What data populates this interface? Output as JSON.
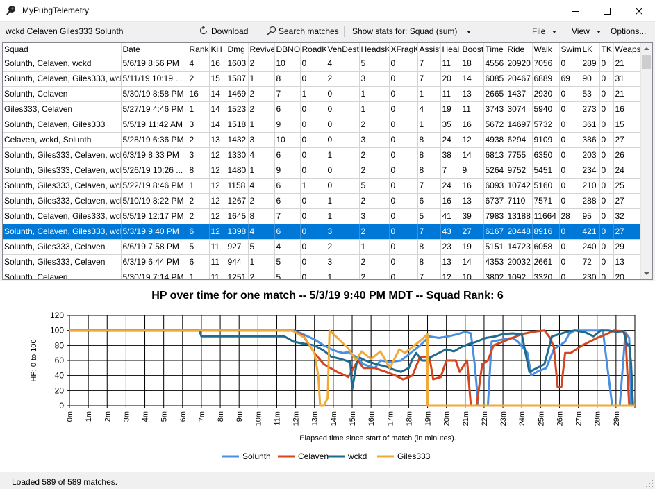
{
  "app": {
    "title": "MyPubgTelemetry"
  },
  "toolbar": {
    "players": "wckd Celaven Giles333 Solunth",
    "download": "Download",
    "search": "Search matches",
    "show_stats": "Show stats for: Squad (sum)",
    "file": "File",
    "view": "View",
    "options": "Options..."
  },
  "grid": {
    "columns": [
      "Squad",
      "Date",
      "Rank",
      "Kill",
      "Dmg",
      "Revive",
      "DBNO",
      "RoadK",
      "VehDest",
      "HeadsK",
      "XFragK",
      "Assist",
      "Heal",
      "Boost",
      "Time",
      "Ride",
      "Walk",
      "Swim",
      "LK",
      "TK",
      "Weaps"
    ],
    "selected_index": 11,
    "rows": [
      [
        "Solunth, Celaven, wckd",
        "5/6/19 8:56 PM",
        "4",
        "16",
        "1603",
        "2",
        "10",
        "0",
        "4",
        "5",
        "0",
        "7",
        "11",
        "18",
        "4556",
        "20920",
        "7056",
        "0",
        "289",
        "0",
        "21"
      ],
      [
        "Solunth, Celaven, Giles333, wckd",
        "5/11/19 10:19 ...",
        "2",
        "15",
        "1587",
        "1",
        "8",
        "0",
        "2",
        "3",
        "0",
        "7",
        "20",
        "14",
        "6085",
        "20467",
        "6889",
        "69",
        "90",
        "0",
        "31"
      ],
      [
        "Solunth, Celaven",
        "5/30/19 8:58 PM",
        "16",
        "14",
        "1469",
        "2",
        "7",
        "1",
        "0",
        "1",
        "0",
        "1",
        "11",
        "13",
        "2665",
        "1437",
        "2930",
        "0",
        "53",
        "0",
        "21"
      ],
      [
        "Giles333, Celaven",
        "5/27/19 4:46 PM",
        "1",
        "14",
        "1523",
        "2",
        "6",
        "0",
        "0",
        "1",
        "0",
        "4",
        "19",
        "11",
        "3743",
        "3074",
        "5940",
        "0",
        "273",
        "0",
        "16"
      ],
      [
        "Solunth, Celaven, Giles333",
        "5/5/19 11:42 AM",
        "3",
        "14",
        "1518",
        "1",
        "9",
        "0",
        "0",
        "2",
        "0",
        "1",
        "35",
        "16",
        "5672",
        "14697",
        "5732",
        "0",
        "361",
        "0",
        "15"
      ],
      [
        "Celaven, wckd, Solunth",
        "5/28/19 6:36 PM",
        "2",
        "13",
        "1432",
        "3",
        "10",
        "0",
        "0",
        "3",
        "0",
        "8",
        "24",
        "12",
        "4938",
        "6294",
        "9109",
        "0",
        "386",
        "0",
        "27"
      ],
      [
        "Solunth, Giles333, Celaven, wckd",
        "6/3/19 8:33 PM",
        "3",
        "12",
        "1330",
        "4",
        "6",
        "0",
        "1",
        "2",
        "0",
        "8",
        "38",
        "14",
        "6813",
        "7755",
        "6350",
        "0",
        "203",
        "0",
        "26"
      ],
      [
        "Solunth, Giles333, Celaven, wckd",
        "5/26/19 10:26 ...",
        "8",
        "12",
        "1480",
        "1",
        "9",
        "0",
        "0",
        "2",
        "0",
        "8",
        "7",
        "9",
        "5264",
        "9752",
        "5451",
        "0",
        "234",
        "0",
        "24"
      ],
      [
        "Solunth, Giles333, Celaven, wckd",
        "5/22/19 8:46 PM",
        "1",
        "12",
        "1158",
        "4",
        "6",
        "1",
        "0",
        "5",
        "0",
        "7",
        "24",
        "16",
        "6093",
        "10742",
        "5160",
        "0",
        "210",
        "0",
        "25"
      ],
      [
        "Solunth, Giles333, Celaven, wckd",
        "5/10/19 8:22 PM",
        "2",
        "12",
        "1267",
        "2",
        "6",
        "0",
        "1",
        "2",
        "0",
        "6",
        "16",
        "13",
        "6737",
        "7110",
        "7571",
        "0",
        "288",
        "0",
        "27"
      ],
      [
        "Solunth, Celaven, Giles333, wckd",
        "5/5/19 12:17 PM",
        "2",
        "12",
        "1645",
        "8",
        "7",
        "0",
        "1",
        "3",
        "0",
        "5",
        "41",
        "39",
        "7983",
        "13188",
        "11664",
        "28",
        "95",
        "0",
        "32"
      ],
      [
        "Solunth, Celaven, Giles333, wckd",
        "5/3/19 9:40 PM",
        "6",
        "12",
        "1398",
        "4",
        "6",
        "0",
        "3",
        "2",
        "0",
        "7",
        "43",
        "27",
        "6167",
        "20448",
        "8916",
        "0",
        "421",
        "0",
        "27"
      ],
      [
        "Solunth, Giles333, Celaven",
        "6/6/19 7:58 PM",
        "5",
        "11",
        "927",
        "5",
        "4",
        "0",
        "2",
        "1",
        "0",
        "8",
        "23",
        "19",
        "5151",
        "14723",
        "6058",
        "0",
        "240",
        "0",
        "29"
      ],
      [
        "Solunth, Giles333, Celaven",
        "6/3/19 6:44 PM",
        "6",
        "11",
        "944",
        "1",
        "5",
        "0",
        "3",
        "2",
        "0",
        "8",
        "13",
        "14",
        "4353",
        "20032",
        "2661",
        "0",
        "72",
        "0",
        "13"
      ],
      [
        "Solunth, Celaven",
        "5/30/19 7:14 PM",
        "1",
        "11",
        "1251",
        "2",
        "5",
        "0",
        "1",
        "2",
        "0",
        "7",
        "12",
        "10",
        "3802",
        "1092",
        "3320",
        "0",
        "230",
        "0",
        "20"
      ]
    ]
  },
  "chart_data": {
    "type": "line",
    "title": "HP over time for one match -- 5/3/19 9:40 PM MDT -- Squad Rank: 6",
    "xlabel": "Elapsed time since start of match (in minutes).",
    "ylabel": "HP: 0 to 100",
    "xlim": [
      0,
      30
    ],
    "ylim": [
      0,
      120
    ],
    "yticks": [
      0,
      20,
      40,
      60,
      80,
      100,
      120
    ],
    "xticks": [
      "0m",
      "1m",
      "2m",
      "3m",
      "4m",
      "5m",
      "6m",
      "7m",
      "8m",
      "9m",
      "10m",
      "11m",
      "12m",
      "13m",
      "14m",
      "15m",
      "16m",
      "17m",
      "18m",
      "19m",
      "20m",
      "21m",
      "22m",
      "23m",
      "24m",
      "25m",
      "26m",
      "27m",
      "28m",
      "29m"
    ],
    "grid": true,
    "legend_position": "bottom",
    "series": [
      {
        "name": "Solunth",
        "color": "#4a90e2",
        "points": [
          [
            0,
            100
          ],
          [
            11.9,
            100
          ],
          [
            12.3,
            96
          ],
          [
            13,
            88
          ],
          [
            13.5,
            80
          ],
          [
            13.9,
            75
          ],
          [
            14.2,
            72
          ],
          [
            14.5,
            70
          ],
          [
            14.8,
            71
          ],
          [
            15.2,
            65
          ],
          [
            15.6,
            55
          ],
          [
            16.2,
            50
          ],
          [
            16.5,
            60
          ],
          [
            17,
            58
          ],
          [
            17.6,
            60
          ],
          [
            18.1,
            70
          ],
          [
            18.6,
            80
          ],
          [
            19.1,
            92
          ],
          [
            19.6,
            90
          ],
          [
            20.1,
            92
          ],
          [
            20.6,
            95
          ],
          [
            21,
            98
          ],
          [
            21.3,
            96
          ],
          [
            21.5,
            55
          ],
          [
            21.7,
            0
          ],
          [
            22.2,
            0
          ],
          [
            22.4,
            85
          ],
          [
            23,
            88
          ],
          [
            23.5,
            90
          ],
          [
            23.8,
            85
          ],
          [
            24.3,
            70
          ],
          [
            24.5,
            40
          ],
          [
            24.8,
            45
          ],
          [
            25.3,
            50
          ],
          [
            25.7,
            75
          ],
          [
            26.3,
            85
          ],
          [
            26.5,
            95
          ],
          [
            26.8,
            100
          ],
          [
            28.3,
            100
          ],
          [
            28.8,
            0
          ],
          [
            29.2,
            0
          ],
          [
            29.5,
            97
          ],
          [
            29.7,
            90
          ],
          [
            29.8,
            0
          ]
        ]
      },
      {
        "name": "Celaven",
        "color": "#d5451e",
        "points": [
          [
            0,
            100
          ],
          [
            11.8,
            100
          ],
          [
            12.4,
            93
          ],
          [
            13,
            70
          ],
          [
            13.5,
            55
          ],
          [
            14.2,
            45
          ],
          [
            14.8,
            38
          ],
          [
            15.3,
            60
          ],
          [
            15.6,
            50
          ],
          [
            16.2,
            50
          ],
          [
            16.8,
            45
          ],
          [
            17.3,
            40
          ],
          [
            17.7,
            35
          ],
          [
            18.2,
            40
          ],
          [
            18.6,
            65
          ],
          [
            19.1,
            65
          ],
          [
            19.3,
            35
          ],
          [
            19.7,
            38
          ],
          [
            20,
            60
          ],
          [
            20.5,
            60
          ],
          [
            20.7,
            45
          ],
          [
            21.1,
            60
          ],
          [
            21.3,
            0
          ],
          [
            21.6,
            0
          ],
          [
            21.9,
            55
          ],
          [
            22.2,
            60
          ],
          [
            22.5,
            80
          ],
          [
            23,
            85
          ],
          [
            23.5,
            90
          ],
          [
            24,
            95
          ],
          [
            24.6,
            98
          ],
          [
            25.2,
            100
          ],
          [
            25.5,
            90
          ],
          [
            25.7,
            78
          ],
          [
            25.9,
            25
          ],
          [
            26.1,
            25
          ],
          [
            26.3,
            70
          ],
          [
            26.6,
            70
          ],
          [
            26.9,
            75
          ],
          [
            27.2,
            80
          ],
          [
            27.6,
            85
          ],
          [
            28,
            90
          ],
          [
            28.5,
            95
          ],
          [
            28.9,
            100
          ],
          [
            29.3,
            99
          ],
          [
            29.5,
            95
          ],
          [
            29.6,
            45
          ],
          [
            29.7,
            0
          ]
        ]
      },
      {
        "name": "wckd",
        "color": "#1f6a8f",
        "points": [
          [
            0,
            100
          ],
          [
            6.9,
            100
          ],
          [
            7,
            92
          ],
          [
            11.4,
            92
          ],
          [
            11.9,
            85
          ],
          [
            12.3,
            83
          ],
          [
            13,
            80
          ],
          [
            13.5,
            73
          ],
          [
            13.9,
            65
          ],
          [
            14.4,
            62
          ],
          [
            14.9,
            58
          ],
          [
            15,
            22
          ],
          [
            15.3,
            65
          ],
          [
            15.7,
            60
          ],
          [
            16.3,
            55
          ],
          [
            16.8,
            52
          ],
          [
            17.2,
            48
          ],
          [
            17.6,
            45
          ],
          [
            18,
            50
          ],
          [
            18.2,
            62
          ],
          [
            18.4,
            70
          ],
          [
            18.7,
            60
          ],
          [
            19,
            60
          ],
          [
            19.2,
            65
          ],
          [
            19.6,
            70
          ],
          [
            20,
            75
          ],
          [
            20.4,
            72
          ],
          [
            20.8,
            78
          ],
          [
            21.2,
            82
          ],
          [
            21.6,
            85
          ],
          [
            22.1,
            90
          ],
          [
            22.6,
            92
          ],
          [
            23,
            95
          ],
          [
            23.5,
            96
          ],
          [
            24,
            95
          ],
          [
            24.4,
            45
          ],
          [
            24.8,
            50
          ],
          [
            25.2,
            55
          ],
          [
            25.6,
            92
          ],
          [
            26,
            95
          ],
          [
            26.4,
            98
          ],
          [
            26.8,
            100
          ],
          [
            27.4,
            97
          ],
          [
            27.8,
            92
          ],
          [
            28.2,
            100
          ],
          [
            28.6,
            100
          ],
          [
            29,
            98
          ],
          [
            29.4,
            99
          ],
          [
            29.6,
            80
          ],
          [
            29.7,
            82
          ],
          [
            29.8,
            55
          ],
          [
            29.9,
            0
          ]
        ]
      },
      {
        "name": "Giles333",
        "color": "#f0aa3a",
        "points": [
          [
            0,
            100
          ],
          [
            11.8,
            100
          ],
          [
            12.5,
            90
          ],
          [
            13,
            70
          ],
          [
            13.2,
            40
          ],
          [
            13.3,
            0
          ],
          [
            13.5,
            0
          ],
          [
            13.7,
            10
          ],
          [
            13.8,
            100
          ],
          [
            14.3,
            88
          ],
          [
            14.8,
            76
          ],
          [
            15.2,
            60
          ],
          [
            15.5,
            72
          ],
          [
            16,
            62
          ],
          [
            16.5,
            72
          ],
          [
            17,
            50
          ],
          [
            17.5,
            75
          ],
          [
            17.8,
            70
          ],
          [
            18.3,
            80
          ],
          [
            18.7,
            88
          ],
          [
            19,
            95
          ],
          [
            19,
            0
          ],
          [
            30,
            0
          ]
        ]
      }
    ]
  },
  "status": {
    "text": "Loaded 589 of 589 matches."
  }
}
